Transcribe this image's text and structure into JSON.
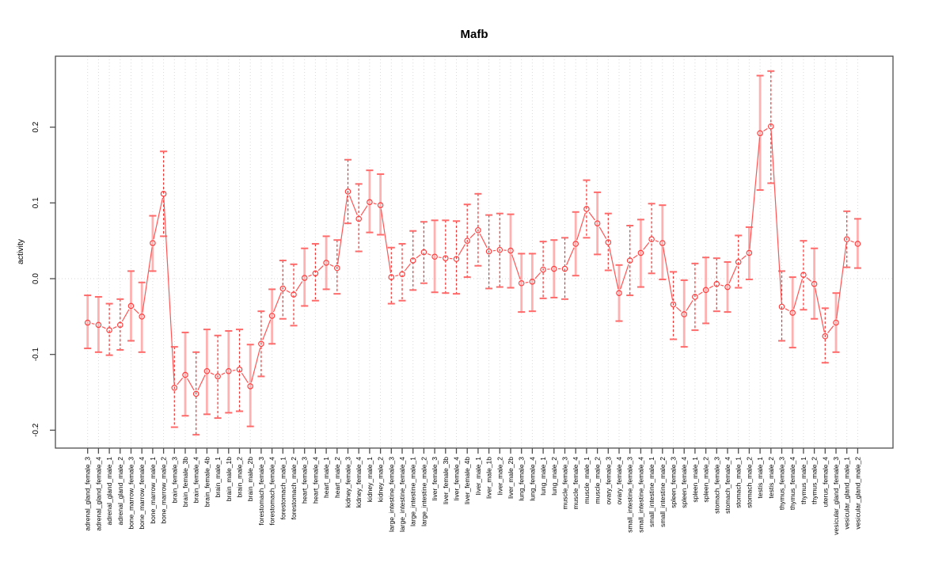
{
  "chart_data": {
    "type": "line",
    "title": "Mafb",
    "ylabel": "activity",
    "xlabel": "",
    "ylim": [
      -0.224,
      0.294
    ],
    "yticks": [
      -0.2,
      -0.1,
      0.0,
      0.1,
      0.2
    ],
    "ytick_labels": [
      "-0.2",
      "-0.1",
      "0.0",
      "0.1",
      "0.2"
    ],
    "grid": "vertical dotted gridline at every category; horizontal dotted line at y=0",
    "legend_position": "none",
    "marker": "open-circle",
    "error_bars": true,
    "categories": [
      "adrenal_gland_female_3",
      "adrenal_gland_female_4",
      "adrenal_gland_male_1",
      "adrenal_gland_male_2",
      "bone_marrow_female_3",
      "bone_marrow_female_4",
      "bone_marrow_male_1",
      "bone_marrow_male_2",
      "brain_female_3",
      "brain_female_3b",
      "brain_female_4",
      "brain_female_4b",
      "brain_male_1",
      "brain_male_1b",
      "brain_male_2",
      "brain_male_2b",
      "forestomach_female_3",
      "forestomach_female_4",
      "forestomach_male_1",
      "forestomach_male_2",
      "heart_female_3",
      "heart_female_4",
      "heart_male_1",
      "heart_male_2",
      "kidney_female_3",
      "kidney_female_4",
      "kidney_male_1",
      "kidney_male_2",
      "large_intestine_female_3",
      "large_intestine_female_4",
      "large_intestine_male_1",
      "large_intestine_male_2",
      "liver_female_3",
      "liver_female_3b",
      "liver_female_4",
      "liver_female_4b",
      "liver_male_1",
      "liver_male_1b",
      "liver_male_2",
      "liver_male_2b",
      "lung_female_3",
      "lung_female_4",
      "lung_male_1",
      "lung_male_2",
      "muscle_female_3",
      "muscle_female_4",
      "muscle_male_1",
      "muscle_male_2",
      "ovary_female_3",
      "ovary_female_4",
      "small_intestine_female_3",
      "small_intestine_female_4",
      "small_intestine_male_1",
      "small_intestine_male_2",
      "spleen_female_3",
      "spleen_female_4",
      "spleen_male_1",
      "spleen_male_2",
      "stomach_female_3",
      "stomach_female_4",
      "stomach_male_1",
      "stomach_male_2",
      "testis_male_1",
      "testis_male_2",
      "thymus_female_3",
      "thymus_female_4",
      "thymus_male_1",
      "thymus_male_2",
      "uterus_female_4",
      "vesicular_gland_female_3",
      "vesicular_gland_male_1",
      "vesicular_gland_male_2"
    ],
    "series": [
      {
        "name": "activity",
        "values": [
          -0.058,
          -0.061,
          -0.068,
          -0.061,
          -0.036,
          -0.05,
          0.047,
          0.112,
          -0.144,
          -0.127,
          -0.152,
          -0.122,
          -0.129,
          -0.122,
          -0.12,
          -0.142,
          -0.086,
          -0.049,
          -0.013,
          -0.021,
          0.001,
          0.007,
          0.021,
          0.014,
          0.115,
          0.079,
          0.101,
          0.097,
          0.002,
          0.006,
          0.024,
          0.035,
          0.029,
          0.027,
          0.026,
          0.05,
          0.064,
          0.036,
          0.038,
          0.037,
          -0.006,
          -0.004,
          0.012,
          0.013,
          0.013,
          0.046,
          0.092,
          0.073,
          0.048,
          -0.019,
          0.024,
          0.034,
          0.052,
          0.047,
          -0.034,
          -0.047,
          -0.024,
          -0.015,
          -0.007,
          -0.011,
          0.022,
          0.034,
          0.192,
          0.201,
          -0.037,
          -0.045,
          0.005,
          -0.007,
          -0.076,
          -0.058,
          0.052,
          0.046
        ],
        "err_lo": [
          -0.092,
          -0.097,
          -0.101,
          -0.094,
          -0.082,
          -0.097,
          0.01,
          0.056,
          -0.196,
          -0.181,
          -0.206,
          -0.179,
          -0.184,
          -0.177,
          -0.175,
          -0.195,
          -0.129,
          -0.086,
          -0.053,
          -0.062,
          -0.036,
          -0.029,
          -0.014,
          -0.02,
          0.073,
          0.036,
          0.061,
          0.058,
          -0.033,
          -0.029,
          -0.015,
          -0.006,
          -0.018,
          -0.019,
          -0.02,
          0.002,
          0.017,
          -0.013,
          -0.011,
          -0.012,
          -0.044,
          -0.043,
          -0.026,
          -0.025,
          -0.027,
          0.004,
          0.054,
          0.032,
          0.011,
          -0.056,
          -0.022,
          -0.011,
          0.007,
          -0.001,
          -0.08,
          -0.09,
          -0.068,
          -0.059,
          -0.043,
          -0.044,
          -0.012,
          -0.001,
          0.117,
          0.126,
          -0.082,
          -0.091,
          -0.041,
          -0.053,
          -0.111,
          -0.097,
          0.015,
          0.014
        ],
        "err_hi": [
          -0.022,
          -0.024,
          -0.033,
          -0.027,
          0.01,
          -0.005,
          0.083,
          0.168,
          -0.09,
          -0.071,
          -0.097,
          -0.067,
          -0.075,
          -0.069,
          -0.067,
          -0.087,
          -0.043,
          -0.014,
          0.024,
          0.019,
          0.04,
          0.046,
          0.056,
          0.051,
          0.157,
          0.125,
          0.143,
          0.138,
          0.041,
          0.046,
          0.063,
          0.075,
          0.077,
          0.077,
          0.076,
          0.098,
          0.112,
          0.084,
          0.086,
          0.085,
          0.033,
          0.033,
          0.049,
          0.051,
          0.054,
          0.088,
          0.13,
          0.114,
          0.086,
          0.018,
          0.07,
          0.078,
          0.099,
          0.097,
          0.009,
          -0.002,
          0.02,
          0.028,
          0.027,
          0.022,
          0.057,
          0.068,
          0.268,
          0.274,
          0.01,
          0.002,
          0.05,
          0.04,
          -0.039,
          -0.019,
          0.089,
          0.079
        ],
        "stem_style": [
          "s",
          "s",
          "d",
          "d",
          "s",
          "s",
          "s",
          "d",
          "d",
          "s",
          "d",
          "s",
          "d",
          "s",
          "d",
          "s",
          "d",
          "s",
          "d",
          "d",
          "s",
          "d",
          "s",
          "d",
          "d",
          "d",
          "s",
          "s",
          "d",
          "d",
          "d",
          "d",
          "s",
          "d",
          "d",
          "d",
          "d",
          "d",
          "d",
          "s",
          "s",
          "s",
          "d",
          "s",
          "d",
          "s",
          "d",
          "s",
          "d",
          "s",
          "d",
          "s",
          "d",
          "s",
          "d",
          "s",
          "d",
          "s",
          "d",
          "s",
          "d",
          "s",
          "s",
          "d",
          "d",
          "s",
          "d",
          "s",
          "d",
          "s",
          "d",
          "s"
        ]
      }
    ],
    "colors": {
      "point": "#ff4040",
      "line": "#ff5555",
      "stem_solid": "#ffb0b0",
      "stem_dashed": "#ee3333",
      "cap": "#ff6b6b",
      "grid": "#d9d9d9",
      "zero_line": "#d9d9d9",
      "box": "#4d4d4d",
      "text": "#000000"
    }
  }
}
